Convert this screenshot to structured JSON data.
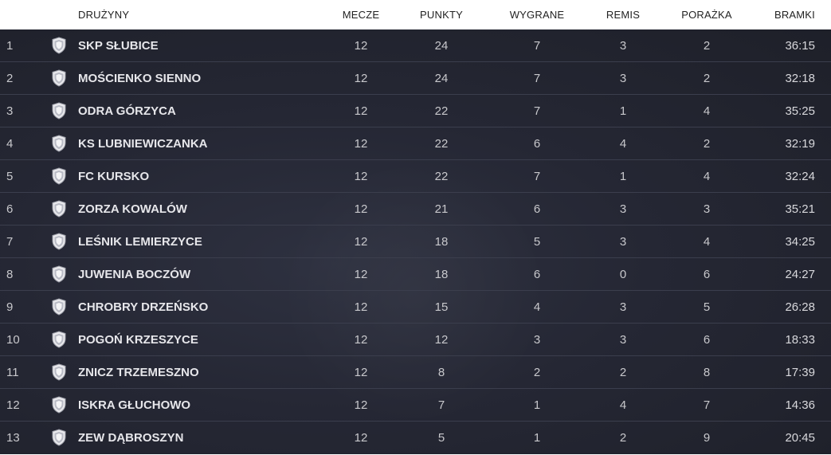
{
  "header": {
    "team": "DRUŻYNY",
    "matches": "MECZE",
    "points": "PUNKTY",
    "wins": "WYGRANE",
    "draws": "REMIS",
    "losses": "PORAŻKA",
    "goals": "BRAMKI"
  },
  "crest_icon": "shield-icon",
  "colors": {
    "background": "#252734",
    "row_border": "#3b3e4d",
    "text": "#c8c8cc",
    "header_text": "#222222"
  },
  "rows": [
    {
      "pos": "1",
      "team": "SKP SŁUBICE",
      "matches": "12",
      "points": "24",
      "wins": "7",
      "draws": "3",
      "losses": "2",
      "goals": "36:15"
    },
    {
      "pos": "2",
      "team": "MOŚCIENKO SIENNO",
      "matches": "12",
      "points": "24",
      "wins": "7",
      "draws": "3",
      "losses": "2",
      "goals": "32:18"
    },
    {
      "pos": "3",
      "team": "ODRA GÓRZYCA",
      "matches": "12",
      "points": "22",
      "wins": "7",
      "draws": "1",
      "losses": "4",
      "goals": "35:25"
    },
    {
      "pos": "4",
      "team": "KS LUBNIEWICZANKA",
      "matches": "12",
      "points": "22",
      "wins": "6",
      "draws": "4",
      "losses": "2",
      "goals": "32:19"
    },
    {
      "pos": "5",
      "team": "FC KURSKO",
      "matches": "12",
      "points": "22",
      "wins": "7",
      "draws": "1",
      "losses": "4",
      "goals": "32:24"
    },
    {
      "pos": "6",
      "team": "ZORZA KOWALÓW",
      "matches": "12",
      "points": "21",
      "wins": "6",
      "draws": "3",
      "losses": "3",
      "goals": "35:21"
    },
    {
      "pos": "7",
      "team": "LEŚNIK LEMIERZYCE",
      "matches": "12",
      "points": "18",
      "wins": "5",
      "draws": "3",
      "losses": "4",
      "goals": "34:25"
    },
    {
      "pos": "8",
      "team": "JUWENIA BOCZÓW",
      "matches": "12",
      "points": "18",
      "wins": "6",
      "draws": "0",
      "losses": "6",
      "goals": "24:27"
    },
    {
      "pos": "9",
      "team": "CHROBRY DRZEŃSKO",
      "matches": "12",
      "points": "15",
      "wins": "4",
      "draws": "3",
      "losses": "5",
      "goals": "26:28"
    },
    {
      "pos": "10",
      "team": "POGOŃ KRZESZYCE",
      "matches": "12",
      "points": "12",
      "wins": "3",
      "draws": "3",
      "losses": "6",
      "goals": "18:33"
    },
    {
      "pos": "11",
      "team": "ZNICZ TRZEMESZNO",
      "matches": "12",
      "points": "8",
      "wins": "2",
      "draws": "2",
      "losses": "8",
      "goals": "17:39"
    },
    {
      "pos": "12",
      "team": "ISKRA GŁUCHOWO",
      "matches": "12",
      "points": "7",
      "wins": "1",
      "draws": "4",
      "losses": "7",
      "goals": "14:36"
    },
    {
      "pos": "13",
      "team": "ZEW DĄBROSZYN",
      "matches": "12",
      "points": "5",
      "wins": "1",
      "draws": "2",
      "losses": "9",
      "goals": "20:45"
    }
  ]
}
